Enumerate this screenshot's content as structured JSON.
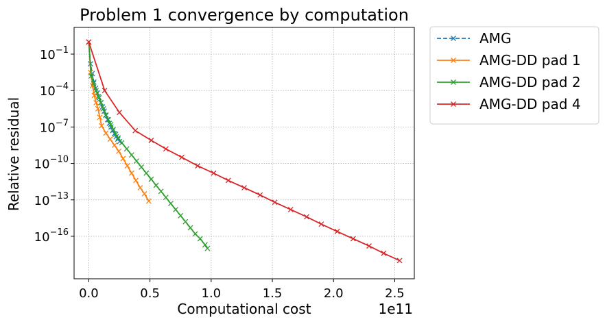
{
  "chart_data": {
    "type": "line",
    "title": "Problem 1 convergence by computation",
    "xlabel": "Computational cost",
    "ylabel": "Relative residual",
    "x_offset_label": "1e11",
    "x_scale": "linear",
    "y_scale": "log",
    "xlim": [
      -0.12,
      2.66
    ],
    "ylim": [
      -19.5,
      1.2
    ],
    "x_ticks": [
      0.0,
      0.5,
      1.0,
      1.5,
      2.0,
      2.5
    ],
    "x_tick_labels": [
      "0.0",
      "0.5",
      "1.0",
      "1.5",
      "2.0",
      "2.5"
    ],
    "y_ticks": [
      -1,
      -4,
      -7,
      -10,
      -13,
      -16
    ],
    "y_tick_base": "10",
    "y_tick_exponents": [
      "−1",
      "−4",
      "−7",
      "−10",
      "−13",
      "−16"
    ],
    "grid": true,
    "legend_position": "outside-right-top",
    "series": [
      {
        "name": "AMG",
        "color": "#1f77b4",
        "dashed": true,
        "x": [
          0.0,
          0.014,
          0.028,
          0.042,
          0.056,
          0.07,
          0.084,
          0.098,
          0.112,
          0.126,
          0.14,
          0.154,
          0.168,
          0.182,
          0.196,
          0.21,
          0.224,
          0.238,
          0.252
        ],
        "y": [
          0.0,
          -1.8,
          -2.6,
          -3.3,
          -3.8,
          -4.2,
          -4.6,
          -5.0,
          -5.35,
          -5.7,
          -6.05,
          -6.4,
          -6.7,
          -7.0,
          -7.3,
          -7.55,
          -7.8,
          -8.0,
          -8.2
        ]
      },
      {
        "name": "AMG-DD pad 1",
        "color": "#ff7f0e",
        "dashed": false,
        "x": [
          0.0,
          0.015,
          0.03,
          0.045,
          0.06,
          0.075,
          0.09,
          0.105,
          0.14,
          0.175,
          0.21,
          0.245,
          0.28,
          0.315,
          0.35,
          0.385,
          0.42,
          0.455,
          0.49
        ],
        "y": [
          0.0,
          -2.5,
          -3.6,
          -4.4,
          -5.0,
          -5.5,
          -6.2,
          -6.9,
          -7.5,
          -8.0,
          -8.5,
          -9.0,
          -9.6,
          -10.2,
          -10.8,
          -11.4,
          -12.0,
          -12.5,
          -13.1
        ]
      },
      {
        "name": "AMG-DD pad 2",
        "color": "#2ca02c",
        "dashed": false,
        "x": [
          0.0,
          0.02,
          0.04,
          0.06,
          0.08,
          0.1,
          0.12,
          0.14,
          0.16,
          0.18,
          0.2,
          0.22,
          0.24,
          0.27,
          0.31,
          0.35,
          0.39,
          0.43,
          0.47,
          0.51,
          0.55,
          0.59,
          0.63,
          0.67,
          0.71,
          0.75,
          0.79,
          0.83,
          0.87,
          0.91,
          0.95,
          0.97
        ],
        "y": [
          0.0,
          -2.8,
          -3.4,
          -4.0,
          -4.5,
          -5.0,
          -5.5,
          -6.0,
          -6.4,
          -6.8,
          -7.2,
          -7.6,
          -7.9,
          -8.3,
          -8.8,
          -9.3,
          -9.8,
          -10.3,
          -10.8,
          -11.3,
          -11.8,
          -12.3,
          -12.8,
          -13.3,
          -13.8,
          -14.3,
          -14.8,
          -15.3,
          -15.8,
          -16.2,
          -16.7,
          -17.0
        ]
      },
      {
        "name": "AMG-DD pad 4",
        "color": "#d62728",
        "dashed": false,
        "x": [
          0.0,
          0.13,
          0.25,
          0.38,
          0.51,
          0.63,
          0.76,
          0.89,
          1.02,
          1.14,
          1.27,
          1.4,
          1.52,
          1.65,
          1.78,
          1.9,
          2.03,
          2.16,
          2.29,
          2.41,
          2.54
        ],
        "y": [
          0.0,
          -4.0,
          -5.8,
          -7.3,
          -8.1,
          -8.8,
          -9.5,
          -10.2,
          -10.8,
          -11.4,
          -12.0,
          -12.6,
          -13.2,
          -13.8,
          -14.4,
          -15.0,
          -15.6,
          -16.2,
          -16.8,
          -17.4,
          -18.0
        ]
      }
    ]
  }
}
